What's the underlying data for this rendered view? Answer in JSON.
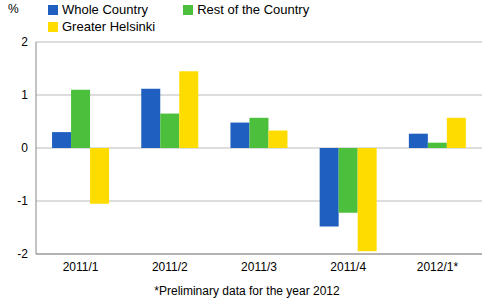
{
  "chart_data": {
    "type": "bar",
    "ylabel": "%",
    "categories": [
      "2011/1",
      "2011/2",
      "2011/3",
      "2011/4",
      "2012/1*"
    ],
    "series": [
      {
        "name": "Whole Country",
        "color": "#1f5fbf",
        "values": [
          0.3,
          1.12,
          0.48,
          -1.48,
          0.27
        ]
      },
      {
        "name": "Rest of the Country",
        "color": "#4cbf3c",
        "values": [
          1.1,
          0.65,
          0.57,
          -1.22,
          0.1
        ]
      },
      {
        "name": "Greater Helsinki",
        "color": "#ffdc00",
        "values": [
          -1.05,
          1.45,
          0.33,
          -1.95,
          0.57
        ]
      }
    ],
    "ylim": [
      -2,
      2
    ],
    "yticks": [
      -2,
      -1,
      0,
      1,
      2
    ],
    "grid": true,
    "legend": "top",
    "annotations": [
      "*Preliminary data for the year 2012"
    ]
  }
}
